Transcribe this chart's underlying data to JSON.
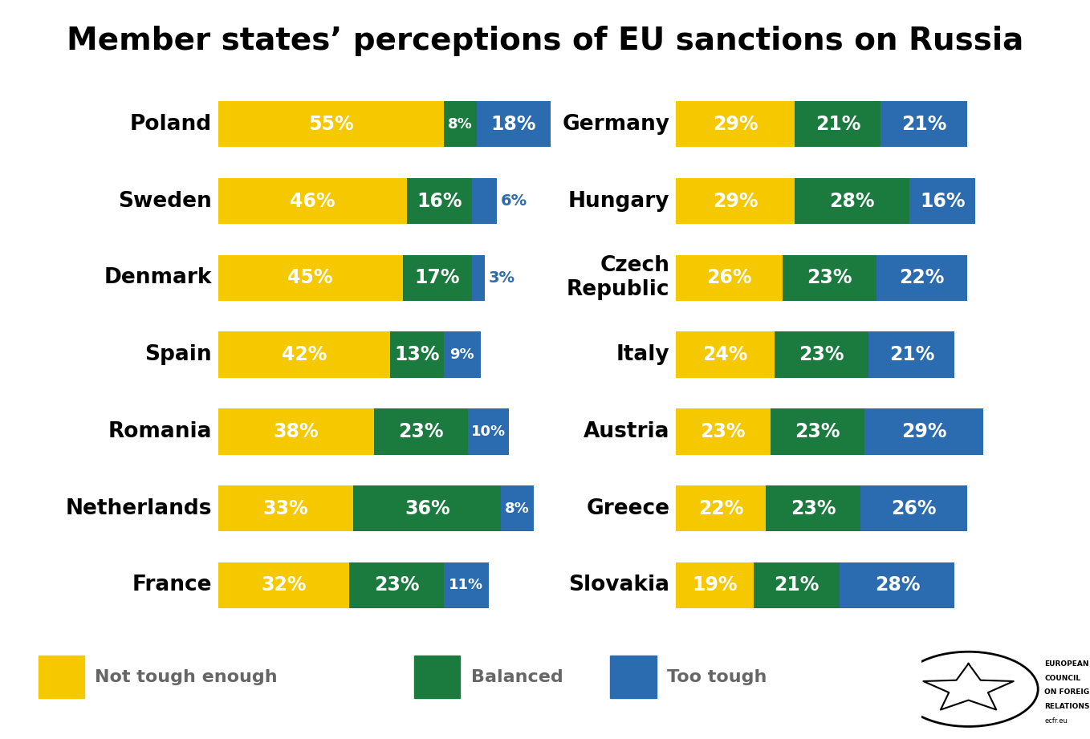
{
  "title": "Member states’ perceptions of EU sanctions on Russia",
  "colors": {
    "yellow": "#F5C800",
    "green": "#1B7A3E",
    "blue": "#2B6CB0",
    "text_dark": "#222222",
    "label_gray": "#666666",
    "background": "#FFFFFF"
  },
  "left_countries": [
    {
      "name": "Poland",
      "yellow": 55,
      "green": 8,
      "blue": 18
    },
    {
      "name": "Sweden",
      "yellow": 46,
      "green": 16,
      "blue": 6
    },
    {
      "name": "Denmark",
      "yellow": 45,
      "green": 17,
      "blue": 3
    },
    {
      "name": "Spain",
      "yellow": 42,
      "green": 13,
      "blue": 9
    },
    {
      "name": "Romania",
      "yellow": 38,
      "green": 23,
      "blue": 10
    },
    {
      "name": "Netherlands",
      "yellow": 33,
      "green": 36,
      "blue": 8
    },
    {
      "name": "France",
      "yellow": 32,
      "green": 23,
      "blue": 11
    }
  ],
  "right_countries": [
    {
      "name": "Germany",
      "yellow": 29,
      "green": 21,
      "blue": 21
    },
    {
      "name": "Hungary",
      "yellow": 29,
      "green": 28,
      "blue": 16
    },
    {
      "name": "Czech\nRepublic",
      "yellow": 26,
      "green": 23,
      "blue": 22
    },
    {
      "name": "Italy",
      "yellow": 24,
      "green": 23,
      "blue": 21
    },
    {
      "name": "Austria",
      "yellow": 23,
      "green": 23,
      "blue": 29
    },
    {
      "name": "Greece",
      "yellow": 22,
      "green": 23,
      "blue": 26
    },
    {
      "name": "Slovakia",
      "yellow": 19,
      "green": 21,
      "blue": 28
    }
  ],
  "legend": {
    "not_tough": "Not tough enough",
    "balanced": "Balanced",
    "too_tough": "Too tough"
  },
  "bar_scale": 81,
  "bar_height": 0.6,
  "country_fontsize": 19,
  "label_fontsize_large": 17,
  "label_fontsize_small": 13,
  "title_fontsize": 28
}
